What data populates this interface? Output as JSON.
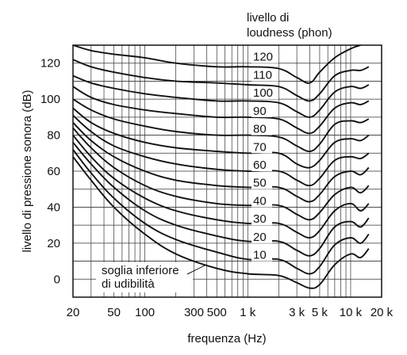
{
  "chart_data": {
    "type": "line",
    "title": "",
    "xlabel": "frequenza (Hz)",
    "ylabel": "livello di pressione sonora (dB)",
    "x_scale": "log",
    "xlim": [
      20,
      20000
    ],
    "ylim": [
      -10,
      130
    ],
    "x_ticks": [
      {
        "value": 20,
        "label": "20"
      },
      {
        "value": 50,
        "label": "50"
      },
      {
        "value": 100,
        "label": "100"
      },
      {
        "value": 300,
        "label": "300"
      },
      {
        "value": 500,
        "label": "500"
      },
      {
        "value": 1000,
        "label": "1 k"
      },
      {
        "value": 3000,
        "label": "3 k"
      },
      {
        "value": 5000,
        "label": "5 k"
      },
      {
        "value": 10000,
        "label": "10 k"
      },
      {
        "value": 20000,
        "label": "20 k"
      }
    ],
    "y_ticks": [
      0,
      20,
      40,
      60,
      80,
      100,
      120
    ],
    "legend_title": [
      "livello di",
      "loudness (phon)"
    ],
    "threshold_label": [
      "soglia inferiore",
      "di udibilità"
    ],
    "grid": true,
    "series": [
      {
        "name": "120",
        "x": [
          20,
          30,
          50,
          100,
          200,
          500,
          1000,
          2000,
          3000,
          4000,
          5000,
          7000,
          10000,
          12500
        ],
        "y": [
          130,
          127,
          125,
          123,
          120,
          118,
          118,
          117,
          112,
          109,
          115,
          123,
          128,
          130
        ]
      },
      {
        "name": "110",
        "x": [
          20,
          30,
          50,
          100,
          200,
          500,
          1000,
          2000,
          3000,
          4000,
          5000,
          7000,
          10000,
          12500,
          15000
        ],
        "y": [
          122,
          118,
          115,
          112,
          110,
          109,
          108,
          107,
          102,
          99,
          103,
          113,
          116,
          116,
          118
        ]
      },
      {
        "name": "100",
        "x": [
          20,
          30,
          50,
          100,
          200,
          500,
          1000,
          2000,
          3000,
          4000,
          5000,
          7000,
          10000,
          12500,
          15000
        ],
        "y": [
          113,
          109,
          106,
          103,
          101,
          99,
          99,
          98,
          93,
          90,
          94,
          104,
          107,
          106,
          108
        ]
      },
      {
        "name": "90",
        "x": [
          20,
          30,
          50,
          100,
          200,
          500,
          1000,
          2000,
          3000,
          4000,
          5000,
          7000,
          10000,
          12500,
          15000
        ],
        "y": [
          107,
          101,
          97,
          94,
          92,
          90,
          90,
          89,
          84,
          81,
          85,
          95,
          98,
          97,
          99
        ]
      },
      {
        "name": "80",
        "x": [
          20,
          30,
          50,
          100,
          200,
          500,
          1000,
          2000,
          3000,
          4000,
          5000,
          7000,
          10000,
          12500,
          15000
        ],
        "y": [
          100,
          94,
          89,
          85,
          82,
          80,
          80,
          79,
          74,
          71,
          75,
          86,
          88,
          87,
          89
        ]
      },
      {
        "name": "70",
        "x": [
          20,
          30,
          50,
          100,
          200,
          500,
          1000,
          2000,
          3000,
          4000,
          5000,
          7000,
          10000,
          12500,
          15000
        ],
        "y": [
          95,
          87,
          81,
          76,
          73,
          71,
          70,
          70,
          64,
          62,
          66,
          76,
          78,
          77,
          80
        ]
      },
      {
        "name": "60",
        "x": [
          20,
          30,
          50,
          100,
          200,
          500,
          1000,
          2000,
          3000,
          4000,
          5000,
          7000,
          10000,
          12500,
          15000
        ],
        "y": [
          91,
          82,
          74,
          68,
          64,
          61,
          60,
          60,
          55,
          52,
          56,
          66,
          68,
          67,
          70
        ]
      },
      {
        "name": "50",
        "x": [
          20,
          30,
          50,
          100,
          200,
          500,
          1000,
          2000,
          3000,
          4000,
          5000,
          7000,
          10000,
          12500,
          15000
        ],
        "y": [
          87,
          77,
          68,
          60,
          55,
          52,
          51,
          51,
          46,
          43,
          47,
          57,
          60,
          58,
          62
        ]
      },
      {
        "name": "40",
        "x": [
          20,
          30,
          50,
          100,
          200,
          500,
          1000,
          2000,
          3000,
          4000,
          5000,
          7000,
          10000,
          12500,
          15000
        ],
        "y": [
          84,
          73,
          62,
          52,
          46,
          42,
          41,
          41,
          36,
          33,
          37,
          47,
          51,
          48,
          52
        ]
      },
      {
        "name": "30",
        "x": [
          20,
          30,
          50,
          100,
          200,
          500,
          1000,
          2000,
          3000,
          4000,
          5000,
          7000,
          10000,
          12500,
          15000
        ],
        "y": [
          80,
          68,
          56,
          45,
          38,
          33,
          31,
          31,
          26,
          23,
          27,
          38,
          42,
          38,
          42
        ]
      },
      {
        "name": "20",
        "x": [
          20,
          30,
          50,
          100,
          200,
          500,
          1000,
          2000,
          3000,
          4000,
          5000,
          7000,
          10000,
          12500,
          15000
        ],
        "y": [
          76,
          64,
          51,
          38,
          30,
          24,
          21,
          21,
          16,
          13,
          17,
          29,
          32,
          29,
          34
        ]
      },
      {
        "name": "10",
        "x": [
          20,
          30,
          50,
          100,
          200,
          500,
          1000,
          2000,
          3000,
          4000,
          5000,
          7000,
          10000,
          12500,
          15000
        ],
        "y": [
          72,
          59,
          45,
          31,
          22,
          15,
          11,
          11,
          6,
          3,
          7,
          19,
          23,
          20,
          25
        ]
      },
      {
        "name": "",
        "x": [
          20,
          30,
          50,
          100,
          200,
          500,
          1000,
          2000,
          3000,
          4000,
          5000,
          7000,
          10000,
          12500,
          15000
        ],
        "y": [
          68,
          55,
          40,
          25,
          14,
          6,
          3,
          2,
          -2,
          -5,
          -3,
          8,
          14,
          12,
          17
        ]
      }
    ]
  }
}
